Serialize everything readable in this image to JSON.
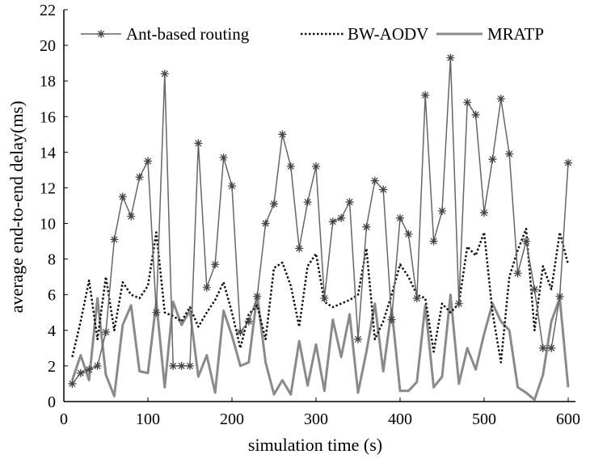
{
  "chart_data": {
    "type": "line",
    "xlabel": "simulation time (s)",
    "ylabel": "average end-to-end delay(ms)",
    "xlim": [
      0,
      600
    ],
    "ylim": [
      0,
      22
    ],
    "xticks": [
      0,
      100,
      200,
      300,
      400,
      500,
      600
    ],
    "yticks": [
      0,
      2,
      4,
      6,
      8,
      10,
      12,
      14,
      16,
      18,
      20,
      22
    ],
    "grid": false,
    "legend_position": "top",
    "x": [
      10,
      20,
      30,
      40,
      50,
      60,
      70,
      80,
      90,
      100,
      110,
      120,
      130,
      140,
      150,
      160,
      170,
      180,
      190,
      200,
      210,
      220,
      230,
      240,
      250,
      260,
      270,
      280,
      290,
      300,
      310,
      320,
      330,
      340,
      350,
      360,
      370,
      380,
      390,
      400,
      410,
      420,
      430,
      440,
      450,
      460,
      470,
      480,
      490,
      500,
      510,
      520,
      530,
      540,
      550,
      560,
      570,
      580,
      590,
      600
    ],
    "series": [
      {
        "name": "Ant-based routing",
        "style": "star-marker",
        "color": "#666666",
        "values": [
          1.0,
          1.6,
          1.8,
          2.0,
          3.9,
          9.1,
          11.5,
          10.4,
          12.6,
          13.5,
          5.0,
          18.4,
          2.0,
          2.0,
          2.0,
          14.5,
          6.4,
          7.7,
          13.7,
          12.1,
          3.9,
          4.5,
          5.9,
          10.0,
          11.1,
          15.0,
          13.2,
          8.6,
          11.2,
          13.2,
          5.8,
          10.1,
          10.3,
          11.2,
          3.5,
          9.8,
          12.4,
          11.9,
          4.6,
          10.3,
          9.4,
          5.8,
          17.2,
          9.0,
          10.7,
          19.3,
          5.5,
          16.8,
          16.1,
          10.6,
          13.6,
          17.0,
          13.9,
          7.2,
          9.0,
          6.3,
          3.0,
          3.0,
          5.9,
          13.4
        ]
      },
      {
        "name": "BW-AODV",
        "style": "dotted",
        "color": "#111111",
        "values": [
          2.5,
          4.5,
          6.8,
          3.5,
          7.0,
          4.0,
          6.7,
          6.0,
          5.8,
          6.5,
          9.5,
          5.0,
          4.8,
          4.5,
          5.3,
          4.2,
          5.0,
          5.7,
          6.7,
          5.0,
          3.0,
          4.9,
          5.4,
          3.5,
          7.5,
          7.8,
          6.5,
          4.2,
          7.6,
          8.3,
          5.6,
          5.3,
          5.5,
          5.7,
          6.0,
          8.6,
          3.5,
          4.5,
          6.0,
          7.7,
          7.0,
          6.0,
          5.8,
          2.8,
          5.5,
          5.0,
          5.5,
          8.7,
          8.2,
          9.5,
          5.0,
          2.2,
          7.0,
          8.5,
          9.7,
          4.0,
          7.6,
          6.3,
          9.5,
          7.7
        ]
      },
      {
        "name": "MRATP",
        "style": "solid-thick",
        "color": "#8a8a8a",
        "values": [
          1.2,
          2.6,
          1.2,
          5.8,
          1.5,
          0.3,
          4.3,
          5.4,
          1.7,
          1.6,
          5.6,
          0.8,
          5.6,
          4.3,
          5.1,
          1.4,
          2.6,
          0.5,
          5.1,
          3.7,
          2.0,
          2.2,
          6.0,
          2.2,
          0.4,
          1.2,
          0.4,
          3.4,
          0.9,
          3.2,
          0.6,
          4.6,
          2.5,
          4.9,
          0.5,
          2.8,
          5.5,
          1.7,
          5.2,
          0.6,
          0.6,
          1.1,
          5.4,
          0.8,
          1.4,
          6.0,
          1.0,
          3.0,
          1.8,
          3.8,
          5.5,
          4.5,
          4.0,
          0.8,
          0.5,
          0.1,
          1.5,
          4.5,
          5.8,
          0.8
        ]
      }
    ]
  }
}
